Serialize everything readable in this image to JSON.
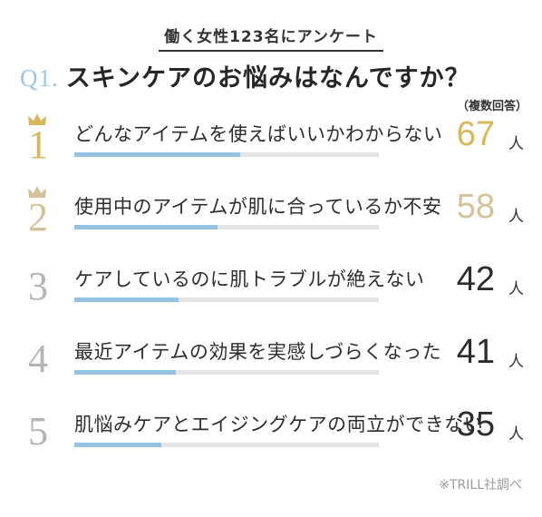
{
  "header": {
    "subtitle": "働く女性123名にアンケート",
    "question_number": "Q1.",
    "question": "スキンケアのお悩みはなんですか？",
    "note": "（複数回答）"
  },
  "footer": {
    "source": "※TRILL社調べ"
  },
  "colors": {
    "gold": "#d9b75c",
    "light_gold": "#d6c29a",
    "gray_rank": "#b5b5b5",
    "bar_fill": "#97c2e1",
    "bar_track": "#e4e4e4"
  },
  "chart_data": {
    "type": "bar",
    "orientation": "horizontal",
    "total": 123,
    "unit": "人",
    "categories": [
      "どんなアイテムを使えばいいかわからない",
      "使用中のアイテムが肌に合っているか不安",
      "ケアしているのに肌トラブルが絶えない",
      "最近アイテムの効果を実感しづらくなった",
      "肌悩みケアとエイジングケアの両立ができない"
    ],
    "values": [
      67,
      58,
      42,
      41,
      35
    ],
    "ranks": [
      "1",
      "2",
      "3",
      "4",
      "5"
    ],
    "rank_colors": [
      "#d9b75c",
      "#d6c29a",
      "#b5b5b5",
      "#b5b5b5",
      "#b5b5b5"
    ],
    "count_colors": [
      "#d9b75c",
      "#d6c29a",
      "#2d2d2d",
      "#2d2d2d",
      "#2d2d2d"
    ],
    "crowns": [
      true,
      true,
      false,
      false,
      false
    ]
  }
}
